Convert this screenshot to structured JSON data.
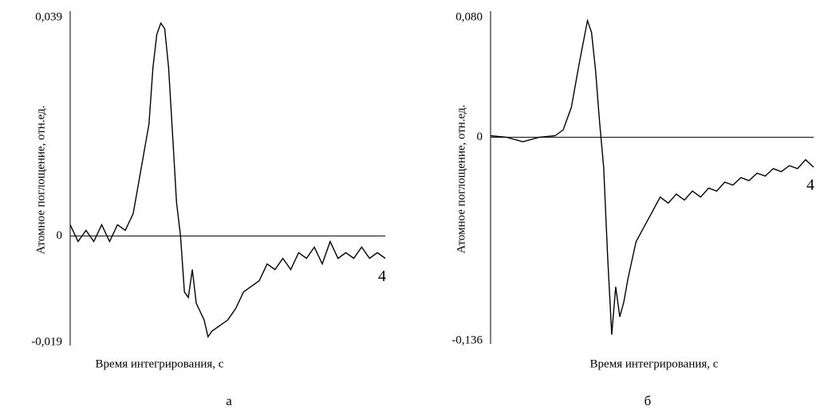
{
  "chart_data": [
    {
      "type": "line",
      "subplot_label": "а",
      "xlabel": "Время интегрирования, с",
      "ylabel": "Атомное поглощение, отн.ед.",
      "xlim": [
        0,
        4
      ],
      "ylim": [
        -0.019,
        0.039
      ],
      "yticks": [
        {
          "value": 0.039,
          "label": "0,039"
        },
        0,
        {
          "value": -0.019,
          "label": "-0,019"
        }
      ],
      "x": [
        0,
        0.1,
        0.2,
        0.3,
        0.4,
        0.5,
        0.6,
        0.7,
        0.8,
        0.9,
        1.0,
        1.05,
        1.1,
        1.15,
        1.2,
        1.25,
        1.3,
        1.35,
        1.4,
        1.45,
        1.5,
        1.55,
        1.6,
        1.7,
        1.75,
        1.8,
        1.9,
        2.0,
        2.1,
        2.2,
        2.3,
        2.4,
        2.5,
        2.6,
        2.7,
        2.8,
        2.9,
        3.0,
        3.1,
        3.2,
        3.3,
        3.4,
        3.5,
        3.6,
        3.7,
        3.8,
        3.9,
        4.0
      ],
      "series": [
        {
          "name": "4",
          "color": "#000000",
          "values": [
            0.002,
            -0.001,
            0.001,
            -0.001,
            0.002,
            -0.001,
            0.002,
            0.001,
            0.004,
            0.012,
            0.02,
            0.03,
            0.036,
            0.038,
            0.037,
            0.03,
            0.018,
            0.006,
            0.0,
            -0.01,
            -0.011,
            -0.006,
            -0.012,
            -0.015,
            -0.018,
            -0.017,
            -0.016,
            -0.015,
            -0.013,
            -0.01,
            -0.009,
            -0.008,
            -0.005,
            -0.006,
            -0.004,
            -0.006,
            -0.003,
            -0.004,
            -0.002,
            -0.005,
            -0.001,
            -0.004,
            -0.003,
            -0.004,
            -0.002,
            -0.004,
            -0.003,
            -0.004
          ]
        }
      ]
    },
    {
      "type": "line",
      "subplot_label": "б",
      "xlabel": "Время интегрирования, с",
      "ylabel": "Атомное поглощение, отн.ед.",
      "xlim": [
        0,
        4
      ],
      "ylim": [
        -0.136,
        0.08
      ],
      "yticks": [
        {
          "value": 0.08,
          "label": "0,080"
        },
        0,
        {
          "value": -0.136,
          "label": "-0,136"
        }
      ],
      "x": [
        0,
        0.2,
        0.4,
        0.6,
        0.8,
        0.9,
        1.0,
        1.1,
        1.2,
        1.25,
        1.3,
        1.35,
        1.4,
        1.45,
        1.5,
        1.55,
        1.6,
        1.65,
        1.7,
        1.8,
        1.9,
        2.0,
        2.1,
        2.2,
        2.3,
        2.4,
        2.5,
        2.6,
        2.7,
        2.8,
        2.9,
        3.0,
        3.1,
        3.2,
        3.3,
        3.4,
        3.5,
        3.6,
        3.7,
        3.8,
        3.9,
        4.0
      ],
      "series": [
        {
          "name": "4",
          "color": "#000000",
          "values": [
            0.001,
            0.0,
            -0.003,
            0.0,
            0.001,
            0.005,
            0.02,
            0.05,
            0.078,
            0.07,
            0.045,
            0.01,
            -0.02,
            -0.08,
            -0.132,
            -0.1,
            -0.12,
            -0.11,
            -0.095,
            -0.07,
            -0.06,
            -0.05,
            -0.04,
            -0.044,
            -0.038,
            -0.042,
            -0.036,
            -0.04,
            -0.034,
            -0.036,
            -0.03,
            -0.032,
            -0.027,
            -0.029,
            -0.024,
            -0.026,
            -0.021,
            -0.023,
            -0.019,
            -0.021,
            -0.015,
            -0.02
          ]
        }
      ]
    }
  ]
}
